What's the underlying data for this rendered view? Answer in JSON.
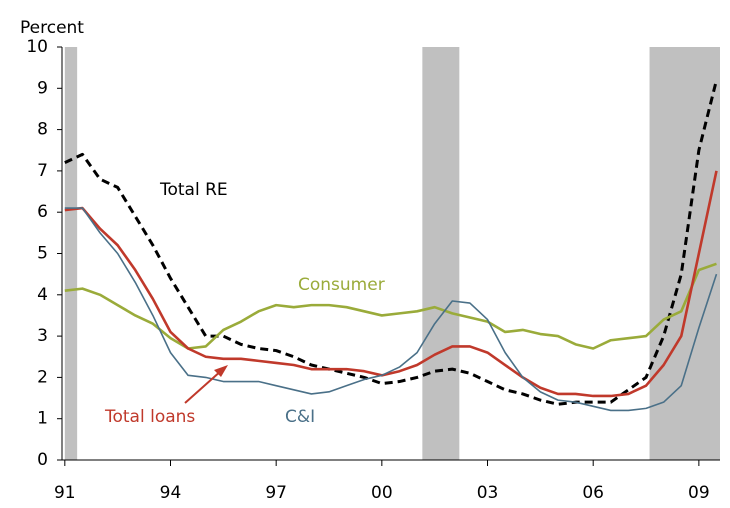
{
  "chart_data": {
    "type": "line",
    "ylabel": "Percent",
    "x": [
      1991,
      1991.5,
      1992,
      1992.5,
      1993,
      1993.5,
      1994,
      1994.5,
      1995,
      1995.5,
      1996,
      1996.5,
      1997,
      1997.5,
      1998,
      1998.5,
      1999,
      1999.5,
      2000,
      2000.5,
      2001,
      2001.5,
      2002,
      2002.5,
      2003,
      2003.5,
      2004,
      2004.5,
      2005,
      2005.5,
      2006,
      2006.5,
      2007,
      2007.5,
      2008,
      2008.5,
      2009,
      2009.5
    ],
    "series": [
      {
        "name": "Total RE",
        "color": "#000000",
        "dashed": true,
        "values": [
          7.2,
          7.4,
          6.8,
          6.6,
          5.9,
          5.2,
          4.4,
          3.7,
          3.0,
          3.0,
          2.8,
          2.7,
          2.65,
          2.5,
          2.3,
          2.2,
          2.1,
          2.0,
          1.85,
          1.9,
          2.0,
          2.15,
          2.2,
          2.1,
          1.9,
          1.7,
          1.6,
          1.45,
          1.35,
          1.4,
          1.4,
          1.4,
          1.7,
          2.0,
          3.0,
          4.5,
          7.5,
          9.2
        ]
      },
      {
        "name": "Consumer",
        "color": "#9aab3a",
        "values": [
          4.1,
          4.15,
          4.0,
          3.75,
          3.5,
          3.3,
          2.95,
          2.7,
          2.75,
          3.15,
          3.35,
          3.6,
          3.75,
          3.7,
          3.75,
          3.75,
          3.7,
          3.6,
          3.5,
          3.55,
          3.6,
          3.7,
          3.55,
          3.45,
          3.35,
          3.1,
          3.15,
          3.05,
          3.0,
          2.8,
          2.7,
          2.9,
          2.95,
          3.0,
          3.4,
          3.6,
          4.6,
          4.75
        ]
      },
      {
        "name": "Total loans",
        "color": "#c0392b",
        "values": [
          6.05,
          6.1,
          5.6,
          5.2,
          4.6,
          3.9,
          3.1,
          2.7,
          2.5,
          2.45,
          2.45,
          2.4,
          2.35,
          2.3,
          2.2,
          2.2,
          2.2,
          2.15,
          2.05,
          2.15,
          2.3,
          2.55,
          2.75,
          2.75,
          2.6,
          2.3,
          2.0,
          1.75,
          1.6,
          1.6,
          1.55,
          1.55,
          1.6,
          1.8,
          2.3,
          3.0,
          5.0,
          7.0
        ]
      },
      {
        "name": "C&I",
        "color": "#4a7088",
        "values": [
          6.1,
          6.1,
          5.5,
          5.0,
          4.3,
          3.5,
          2.6,
          2.05,
          2.0,
          1.9,
          1.9,
          1.9,
          1.8,
          1.7,
          1.6,
          1.65,
          1.8,
          1.95,
          2.05,
          2.25,
          2.6,
          3.3,
          3.85,
          3.8,
          3.4,
          2.6,
          2.0,
          1.65,
          1.45,
          1.4,
          1.3,
          1.2,
          1.2,
          1.25,
          1.4,
          1.8,
          3.2,
          4.5
        ]
      }
    ],
    "shaded_periods": [
      [
        1991.0,
        1991.35
      ],
      [
        2001.15,
        2002.2
      ],
      [
        2007.6,
        2009.6
      ]
    ],
    "shade_color": "#c0c0c0",
    "xlim": [
      1990.92,
      2009.6
    ],
    "ylim": [
      0,
      10
    ],
    "yticks": [
      0,
      1,
      2,
      3,
      4,
      5,
      6,
      7,
      8,
      9,
      10
    ],
    "xticks": [
      {
        "value": 1991,
        "label": "91"
      },
      {
        "value": 1994,
        "label": "94"
      },
      {
        "value": 1997,
        "label": "97"
      },
      {
        "value": 2000,
        "label": "00"
      },
      {
        "value": 2003,
        "label": "03"
      },
      {
        "value": 2006,
        "label": "06"
      },
      {
        "value": 2009,
        "label": "09"
      }
    ]
  }
}
